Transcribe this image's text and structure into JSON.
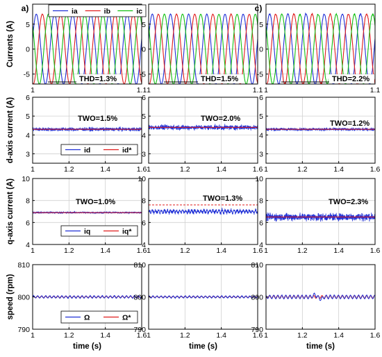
{
  "figure": {
    "panel_letters": [
      "a)",
      "b)",
      "c)"
    ],
    "x_label": "time (s)"
  },
  "chart_data": [
    {
      "name": "currents",
      "type": "line",
      "ylabel": "Currents (A)",
      "ylim": [
        -7,
        9
      ],
      "yticks": [
        -5,
        0,
        5
      ],
      "xticks_by_panel": [
        [
          "1",
          "1.1"
        ],
        [
          "1",
          "1.1"
        ],
        [
          "1",
          "1.1"
        ]
      ],
      "xlim_by_panel": [
        [
          1.0,
          1.1
        ],
        [
          1.0,
          1.1
        ],
        [
          1.0,
          1.1
        ]
      ],
      "legend": [
        {
          "label": "ia",
          "color": "#1f2fd6"
        },
        {
          "label": "ib",
          "color": "#e01b1b"
        },
        {
          "label": "ic",
          "color": "#11bf11"
        }
      ],
      "amplitude": 7,
      "frequency_hz": 60,
      "annotations": [
        "THD=1.3%",
        "THD=1.5%",
        "THD=2.2%"
      ]
    },
    {
      "name": "d-axis",
      "type": "line",
      "ylabel": "d-axis current (A)",
      "ylim": [
        2.5,
        6
      ],
      "yticks": [
        3,
        4,
        5,
        6
      ],
      "xticks": [
        "1",
        "1.2",
        "1.4",
        "1.6"
      ],
      "xlim": [
        1.0,
        1.6
      ],
      "legend": [
        {
          "label": "id",
          "color": "#1f2fd6"
        },
        {
          "label": "id*",
          "color": "#e01b1b"
        }
      ],
      "mean_by_panel": [
        4.3,
        4.4,
        4.3
      ],
      "annotations": [
        "TWO=1.5%",
        "TWO=2.0%",
        "TWO=1.2%"
      ]
    },
    {
      "name": "q-axis",
      "type": "line",
      "ylabel": "q-axis current (A)",
      "ylim": [
        4,
        10
      ],
      "yticks": [
        4,
        6,
        8,
        10
      ],
      "xticks": [
        "1",
        "1.2",
        "1.4",
        "1.6"
      ],
      "xlim": [
        1.0,
        1.6
      ],
      "legend": [
        {
          "label": "iq",
          "color": "#1f2fd6"
        },
        {
          "label": "iq*",
          "color": "#e01b1b"
        }
      ],
      "mean_by_panel": [
        6.9,
        7.0,
        6.5
      ],
      "reference_by_panel": [
        6.9,
        7.6,
        6.5
      ],
      "annotations": [
        "TWO=1.0%",
        "TWO=1.3%",
        "TWO=2.3%"
      ]
    },
    {
      "name": "speed",
      "type": "line",
      "ylabel": "speed (rpm)",
      "ylim": [
        790,
        810
      ],
      "yticks": [
        790,
        800,
        810
      ],
      "xticks": [
        "1",
        "1.2",
        "1.4",
        "1.6"
      ],
      "xlim": [
        1.0,
        1.6
      ],
      "legend": [
        {
          "label": "Ω",
          "color": "#1f2fd6"
        },
        {
          "label": "Ω*",
          "color": "#e01b1b"
        }
      ],
      "reference": 800
    }
  ]
}
